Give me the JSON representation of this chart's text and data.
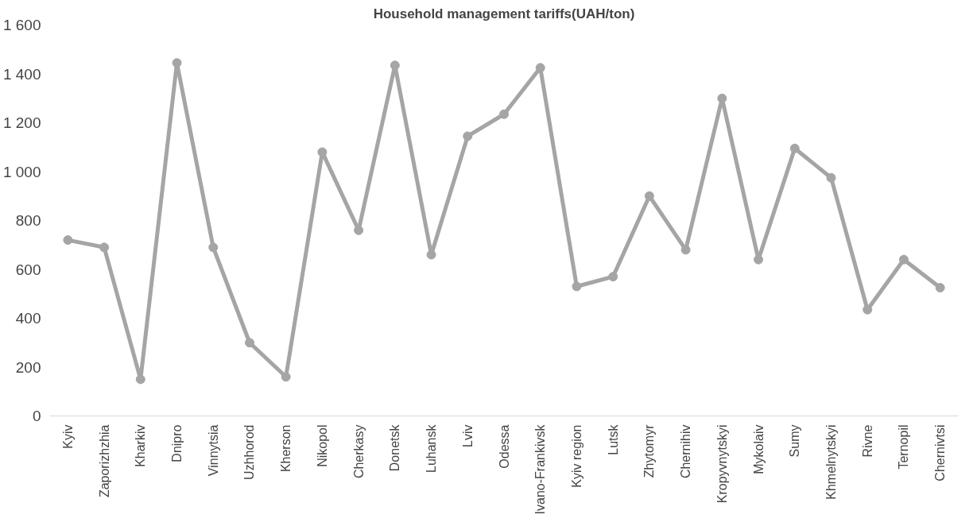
{
  "chart_data": {
    "type": "line",
    "title": "Household management tariffs(UAH/ton)",
    "categories": [
      "Kyiv",
      "Zaporizhzhia",
      "Kharkiv",
      "Dnipro",
      "Vinnytsia",
      "Uzhhorod",
      "Kherson",
      "Nikopol",
      "Cherkasy",
      "Donetsk",
      "Luhansk",
      "Lviv",
      "Odessa",
      "Ivano-Frankivsk",
      "Kyiv region",
      "Lutsk",
      "Zhytomyr",
      "Chernihiv",
      "Kropyvnytskyi",
      "Mykolaiv",
      "Sumy",
      "Khmelnytskyi",
      "Rivne",
      "Ternopil",
      "Chernivtsi"
    ],
    "series": [
      {
        "color": "#a5a5a5",
        "values": [
          720,
          690,
          150,
          1445,
          690,
          300,
          160,
          1080,
          760,
          1435,
          660,
          1145,
          1235,
          1425,
          530,
          570,
          900,
          680,
          1300,
          640,
          1095,
          975,
          435,
          640,
          525
        ]
      }
    ],
    "ylim": [
      0,
      1600
    ],
    "yticks": [
      {
        "value": 0,
        "label": "0"
      },
      {
        "value": 200,
        "label": "200"
      },
      {
        "value": 400,
        "label": "400"
      },
      {
        "value": 600,
        "label": "600"
      },
      {
        "value": 800,
        "label": "800"
      },
      {
        "value": 1000,
        "label": "1 000"
      },
      {
        "value": 1200,
        "label": "1 200"
      },
      {
        "value": 1400,
        "label": "1 400"
      },
      {
        "value": 1600,
        "label": "1 600"
      }
    ],
    "grid": false,
    "marker": "circle",
    "line_style": "solid"
  }
}
